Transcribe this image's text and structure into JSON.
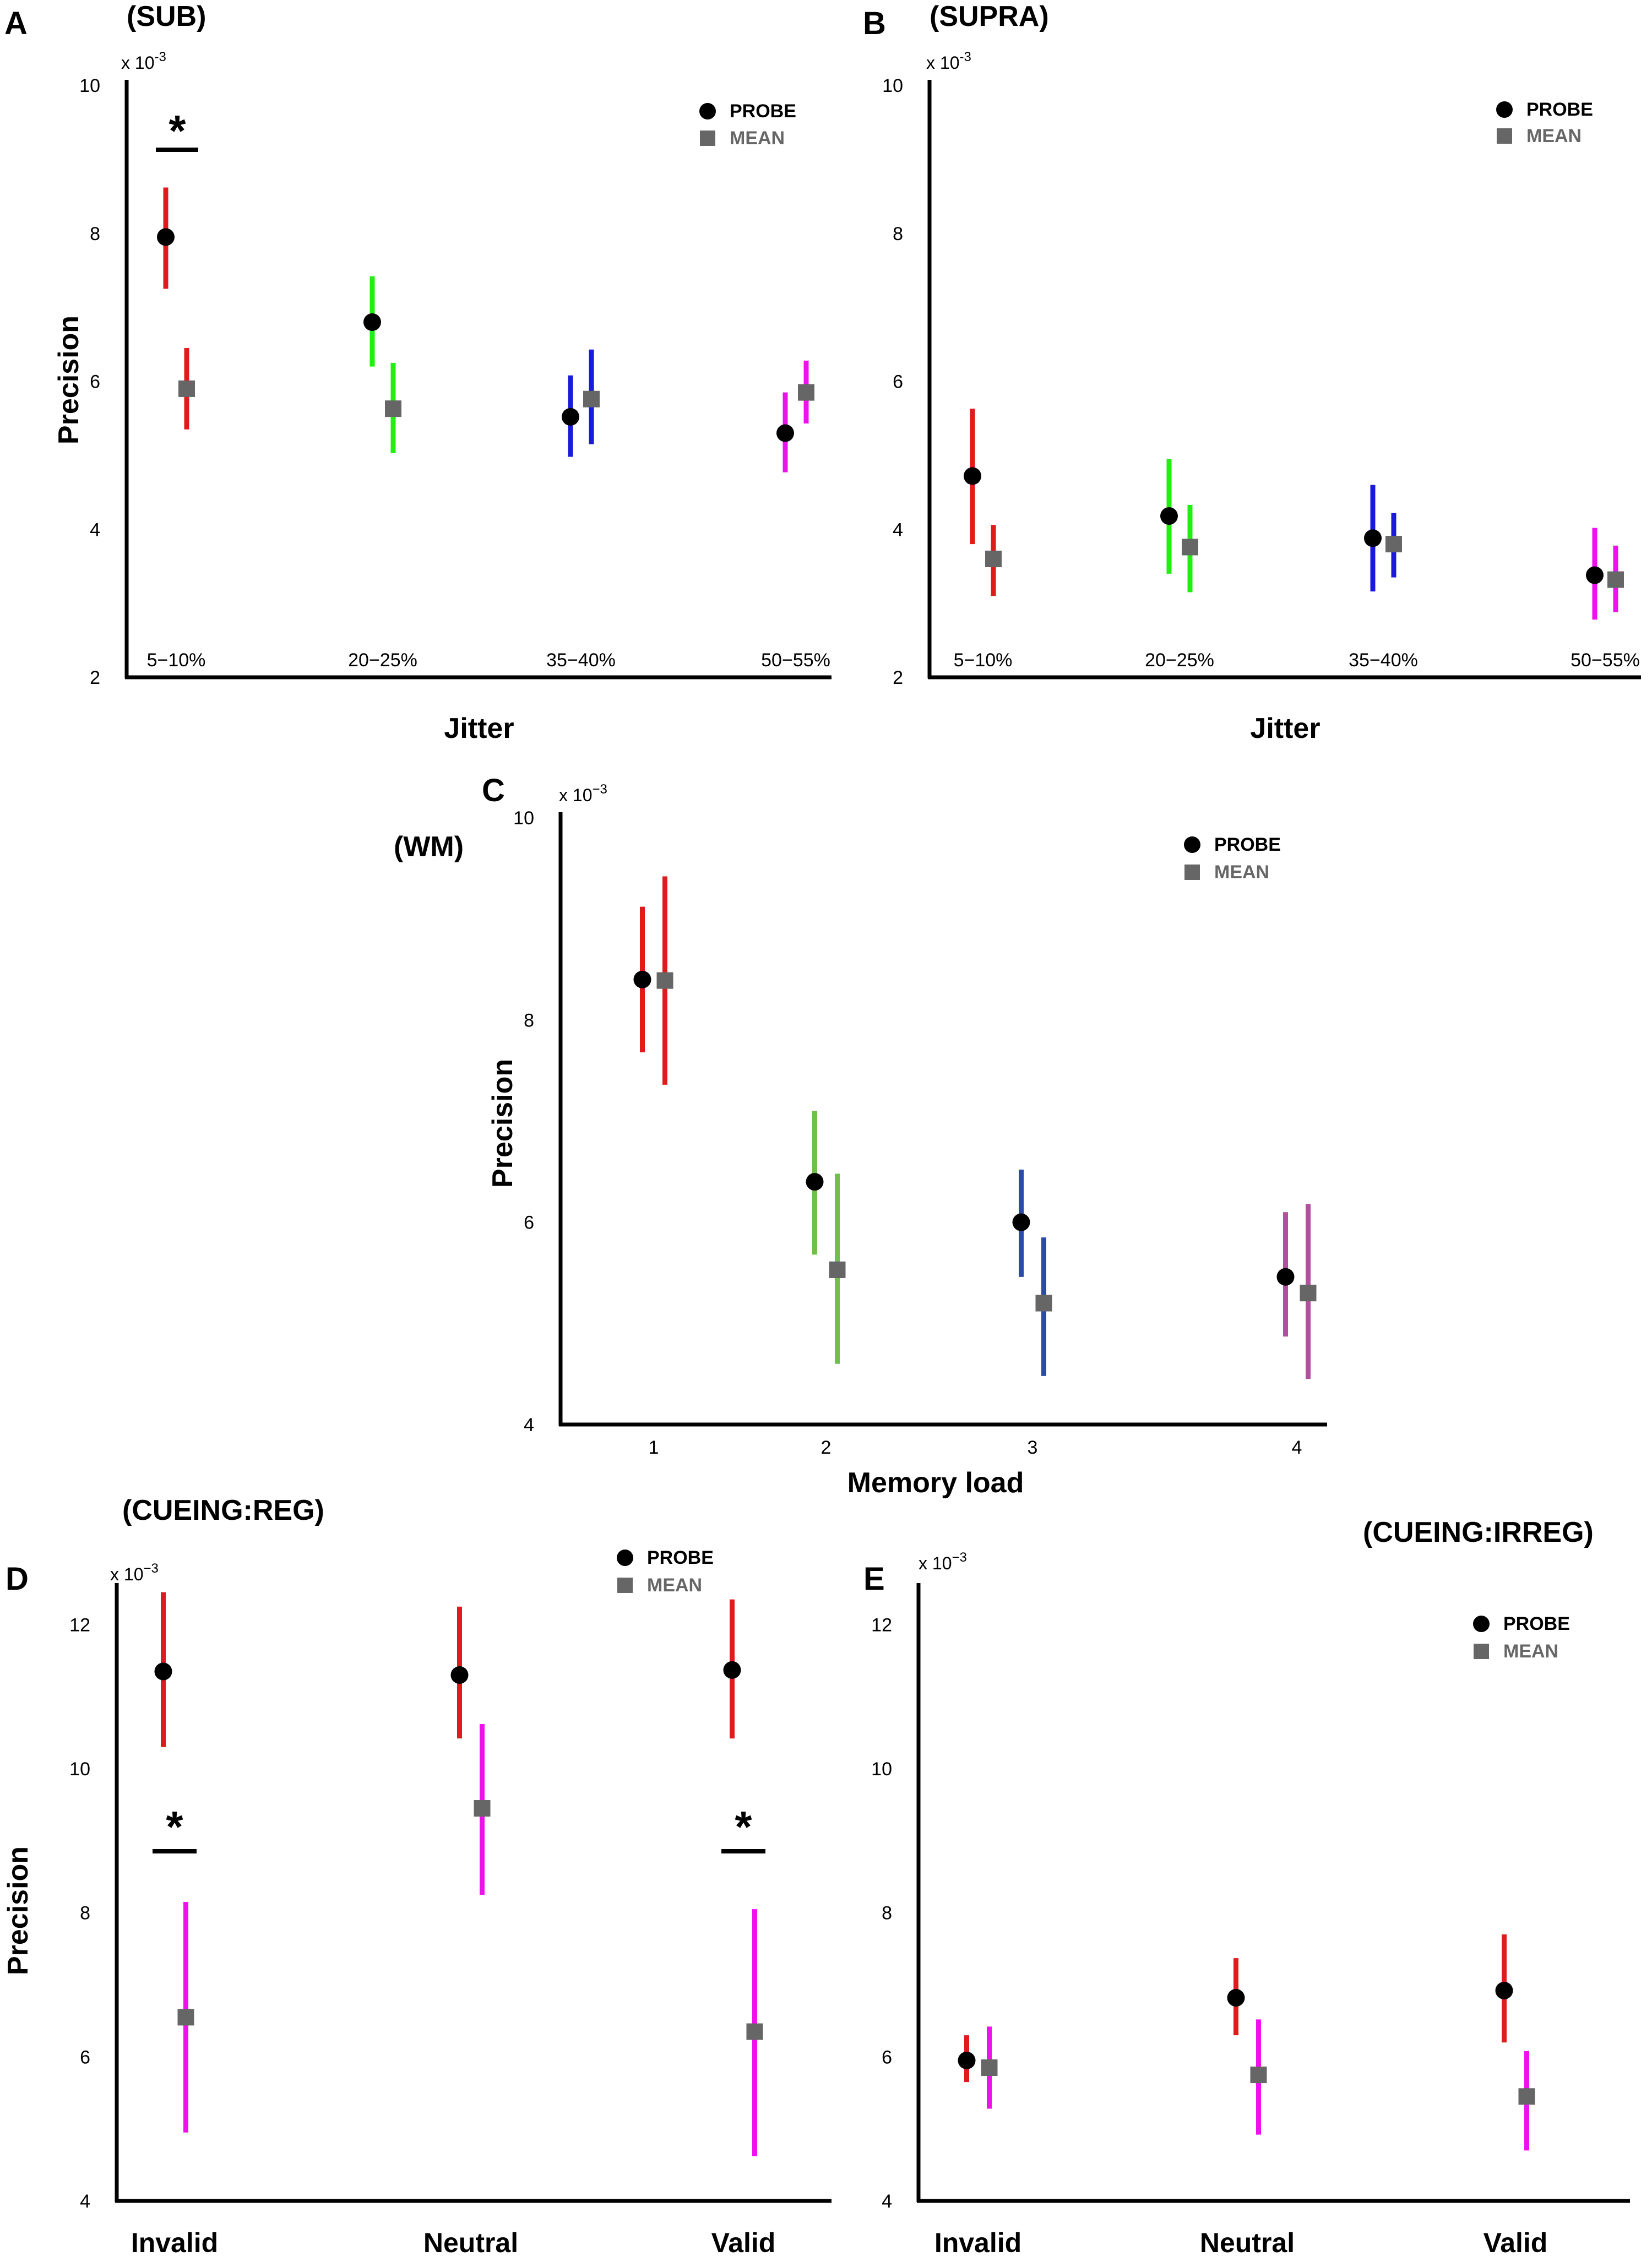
{
  "colors": {
    "probe_marker": "#000000",
    "mean_marker": "#666666",
    "red": "#e01b1b",
    "green": "#22ee11",
    "blue": "#1a1adc",
    "magenta": "#ee11ee",
    "wm_red": "#e01b1b",
    "wm_green": "#6ec04a",
    "wm_blue": "#2c4aa8",
    "wm_purple": "#b0509e"
  },
  "chart_data": [
    {
      "panel": "A",
      "title": "(SUB)",
      "type": "scatter",
      "xlabel": "Jitter",
      "ylabel": "Precision",
      "exponent_label": "x 10",
      "exponent_power": "-3",
      "ylim": [
        2,
        10
      ],
      "yticks": [
        "2",
        "4",
        "6",
        "8",
        "10"
      ],
      "categories": [
        "5−10%",
        "20−25%",
        "35−40%",
        "50−55%"
      ],
      "series": [
        {
          "name": "PROBE",
          "values": [
            7.95,
            6.8,
            5.52,
            5.3
          ],
          "lower": [
            7.25,
            6.2,
            4.98,
            4.77
          ],
          "upper": [
            8.62,
            7.42,
            6.08,
            5.85
          ]
        },
        {
          "name": "MEAN",
          "values": [
            5.9,
            5.63,
            5.76,
            5.85
          ],
          "lower": [
            5.35,
            5.03,
            5.15,
            5.43
          ],
          "upper": [
            6.45,
            6.25,
            6.43,
            6.28
          ]
        }
      ],
      "bar_colors": [
        "red",
        "green",
        "blue",
        "magenta"
      ],
      "legend": [
        "PROBE",
        "MEAN"
      ],
      "significance": [
        {
          "category": 0,
          "label": "*"
        }
      ]
    },
    {
      "panel": "B",
      "title": "(SUPRA)",
      "type": "scatter",
      "xlabel": "Jitter",
      "ylabel": "",
      "exponent_label": "x 10",
      "exponent_power": "-3",
      "ylim": [
        2,
        10
      ],
      "yticks": [
        "2",
        "4",
        "6",
        "8",
        "10"
      ],
      "categories": [
        "5−10%",
        "20−25%",
        "35−40%",
        "50−55%"
      ],
      "series": [
        {
          "name": "PROBE",
          "values": [
            4.72,
            4.18,
            3.88,
            3.38
          ],
          "lower": [
            3.8,
            3.4,
            3.16,
            2.78
          ],
          "upper": [
            5.63,
            4.95,
            4.6,
            4.02
          ]
        },
        {
          "name": "MEAN",
          "values": [
            3.6,
            3.76,
            3.8,
            3.32
          ],
          "lower": [
            3.1,
            3.15,
            3.35,
            2.88
          ],
          "upper": [
            4.06,
            4.33,
            4.22,
            3.78
          ]
        }
      ],
      "bar_colors": [
        "red",
        "green",
        "blue",
        "magenta"
      ],
      "legend": [
        "PROBE",
        "MEAN"
      ],
      "significance": []
    },
    {
      "panel": "C",
      "title": "(WM)",
      "type": "scatter",
      "xlabel": "Memory load",
      "ylabel": "Precision",
      "exponent_label": "x 10",
      "exponent_power": "−3",
      "ylim": [
        4,
        10
      ],
      "yticks": [
        "4",
        "6",
        "8",
        "10"
      ],
      "categories": [
        "1",
        "2",
        "3",
        "4"
      ],
      "series": [
        {
          "name": "PROBE",
          "values": [
            8.4,
            6.4,
            6.0,
            5.46
          ],
          "lower": [
            7.68,
            5.68,
            5.46,
            4.87
          ],
          "upper": [
            9.12,
            7.1,
            6.52,
            6.1
          ]
        },
        {
          "name": "MEAN",
          "values": [
            8.39,
            5.53,
            5.2,
            5.3
          ],
          "lower": [
            7.36,
            4.6,
            4.48,
            4.45
          ],
          "upper": [
            9.42,
            6.48,
            5.85,
            6.18
          ]
        }
      ],
      "bar_colors": [
        "wm_red",
        "wm_green",
        "wm_blue",
        "wm_purple"
      ],
      "legend": [
        "PROBE",
        "MEAN"
      ],
      "significance": []
    },
    {
      "panel": "D",
      "title": "(CUEING:REG)",
      "type": "scatter",
      "xlabel": "",
      "ylabel": "Precision",
      "exponent_label": "x 10",
      "exponent_power": "−3",
      "ylim": [
        4,
        12.5
      ],
      "yticks": [
        "4",
        "6",
        "8",
        "10",
        "12"
      ],
      "categories": [
        "Invalid",
        "Neutral",
        "Valid"
      ],
      "series": [
        {
          "name": "PROBE",
          "values": [
            11.35,
            11.3,
            11.37
          ],
          "lower": [
            10.3,
            10.42,
            10.42
          ],
          "upper": [
            12.45,
            12.25,
            12.35
          ]
        },
        {
          "name": "MEAN",
          "values": [
            6.55,
            9.45,
            6.35
          ],
          "lower": [
            4.95,
            8.25,
            4.62
          ],
          "upper": [
            8.15,
            10.62,
            8.05
          ]
        }
      ],
      "bar_colors": [
        "red",
        "magenta"
      ],
      "legend": [
        "PROBE",
        "MEAN"
      ],
      "significance": [
        {
          "category": 0,
          "label": "*"
        },
        {
          "category": 2,
          "label": "*"
        }
      ]
    },
    {
      "panel": "E",
      "title": "(CUEING:IRREG)",
      "type": "scatter",
      "xlabel": "",
      "ylabel": "",
      "exponent_label": "x 10",
      "exponent_power": "−3",
      "ylim": [
        4,
        12.5
      ],
      "yticks": [
        "4",
        "6",
        "8",
        "10",
        "12"
      ],
      "categories": [
        "Invalid",
        "Neutral",
        "Valid"
      ],
      "series": [
        {
          "name": "PROBE",
          "values": [
            5.95,
            6.82,
            6.92
          ],
          "lower": [
            5.65,
            6.3,
            6.2
          ],
          "upper": [
            6.3,
            7.37,
            7.7
          ]
        },
        {
          "name": "MEAN",
          "values": [
            5.85,
            5.75,
            5.45
          ],
          "lower": [
            5.28,
            4.92,
            4.7
          ],
          "upper": [
            6.42,
            6.52,
            6.08
          ]
        }
      ],
      "bar_colors": [
        "red",
        "magenta"
      ],
      "legend": [
        "PROBE",
        "MEAN"
      ],
      "significance": []
    }
  ]
}
